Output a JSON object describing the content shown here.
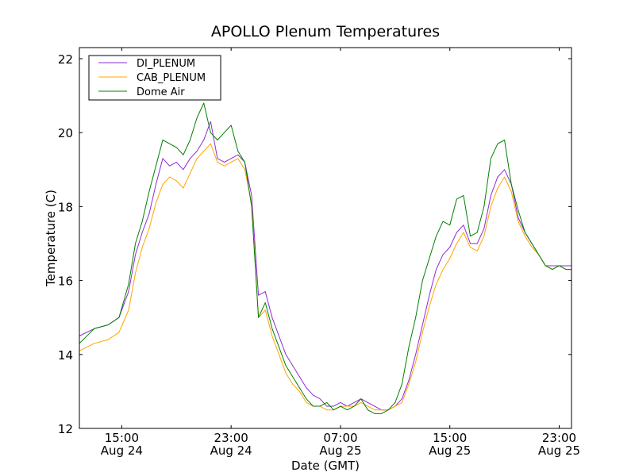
{
  "colors": {
    "di_plenum": "#8e2bd6",
    "cab_plenum": "#ffa500",
    "dome_air": "#008000"
  },
  "chart_data": {
    "type": "line",
    "title": "APOLLO Plenum Temperatures",
    "xlabel": "Date (GMT)",
    "ylabel": "Temperature (C)",
    "x_unit": "hours since Aug 24 00:00 GMT",
    "xlim": [
      11.9,
      47.9
    ],
    "ylim": [
      12,
      22.3
    ],
    "yticks": [
      12,
      14,
      16,
      18,
      20,
      22
    ],
    "ytick_labels": [
      "12",
      "14",
      "16",
      "18",
      "20",
      "22"
    ],
    "xticks": [
      {
        "x": 15,
        "time": "15:00",
        "date": "Aug 24"
      },
      {
        "x": 23,
        "time": "23:00",
        "date": "Aug 24"
      },
      {
        "x": 31,
        "time": "07:00",
        "date": "Aug 25"
      },
      {
        "x": 39,
        "time": "15:00",
        "date": "Aug 25"
      },
      {
        "x": 47,
        "time": "23:00",
        "date": "Aug 25"
      }
    ],
    "legend_position": "top-left",
    "series": [
      {
        "name": "DI_PLENUM",
        "color": "#8e2bd6",
        "x": [
          11.9,
          13.0,
          14.0,
          14.8,
          15.5,
          16.0,
          16.5,
          17.0,
          17.5,
          18.0,
          18.5,
          19.0,
          19.5,
          20.0,
          20.5,
          21.0,
          21.5,
          22.0,
          22.5,
          23.0,
          23.5,
          24.0,
          24.5,
          25.0,
          25.5,
          26.0,
          26.5,
          27.0,
          27.5,
          28.0,
          28.5,
          29.0,
          29.5,
          30.0,
          30.5,
          31.0,
          31.5,
          32.0,
          32.5,
          33.0,
          33.5,
          34.0,
          34.5,
          35.0,
          35.5,
          36.0,
          36.5,
          37.0,
          37.5,
          38.0,
          38.5,
          39.0,
          39.5,
          40.0,
          40.5,
          41.0,
          41.5,
          42.0,
          42.5,
          43.0,
          43.5,
          44.0,
          44.5,
          45.0,
          45.5,
          46.0,
          46.5,
          47.0,
          47.5,
          47.9
        ],
        "values": [
          14.5,
          14.7,
          14.8,
          15.0,
          15.7,
          16.7,
          17.3,
          17.8,
          18.6,
          19.3,
          19.1,
          19.2,
          19.0,
          19.3,
          19.5,
          19.8,
          20.3,
          19.3,
          19.2,
          19.3,
          19.4,
          19.2,
          18.3,
          15.6,
          15.7,
          15.0,
          14.5,
          14.0,
          13.7,
          13.4,
          13.1,
          12.9,
          12.8,
          12.6,
          12.6,
          12.7,
          12.6,
          12.7,
          12.8,
          12.7,
          12.6,
          12.5,
          12.5,
          12.6,
          12.8,
          13.3,
          14.0,
          14.8,
          15.6,
          16.3,
          16.7,
          16.9,
          17.3,
          17.5,
          17.0,
          17.0,
          17.4,
          18.3,
          18.8,
          19.0,
          18.6,
          17.7,
          17.3,
          17.0,
          16.7,
          16.4,
          16.4,
          16.4,
          16.4,
          16.4
        ]
      },
      {
        "name": "CAB_PLENUM",
        "color": "#ffa500",
        "x": [
          11.9,
          13.0,
          14.0,
          14.8,
          15.5,
          16.0,
          16.5,
          17.0,
          17.5,
          18.0,
          18.5,
          19.0,
          19.5,
          20.0,
          20.5,
          21.0,
          21.5,
          22.0,
          22.5,
          23.0,
          23.5,
          24.0,
          24.5,
          25.0,
          25.5,
          26.0,
          26.5,
          27.0,
          27.5,
          28.0,
          28.5,
          29.0,
          29.5,
          30.0,
          30.5,
          31.0,
          31.5,
          32.0,
          32.5,
          33.0,
          33.5,
          34.0,
          34.5,
          35.0,
          35.5,
          36.0,
          36.5,
          37.0,
          37.5,
          38.0,
          38.5,
          39.0,
          39.5,
          40.0,
          40.5,
          41.0,
          41.5,
          42.0,
          42.5,
          43.0,
          43.5,
          44.0,
          44.5,
          45.0,
          45.5,
          46.0,
          46.5,
          47.0,
          47.5,
          47.9
        ],
        "values": [
          14.1,
          14.3,
          14.4,
          14.6,
          15.2,
          16.2,
          16.9,
          17.4,
          18.1,
          18.6,
          18.8,
          18.7,
          18.5,
          18.9,
          19.3,
          19.5,
          19.7,
          19.2,
          19.1,
          19.2,
          19.3,
          19.0,
          18.1,
          15.0,
          15.2,
          14.5,
          14.0,
          13.5,
          13.2,
          13.0,
          12.7,
          12.6,
          12.6,
          12.5,
          12.5,
          12.6,
          12.6,
          12.6,
          12.7,
          12.6,
          12.5,
          12.5,
          12.5,
          12.6,
          12.7,
          13.2,
          13.8,
          14.6,
          15.3,
          15.9,
          16.3,
          16.6,
          17.0,
          17.3,
          16.9,
          16.8,
          17.2,
          18.0,
          18.5,
          18.8,
          18.4,
          17.6,
          17.2,
          16.9,
          16.7,
          16.4,
          16.3,
          16.4,
          16.3,
          16.3
        ]
      },
      {
        "name": "Dome Air",
        "color": "#008000",
        "x": [
          11.9,
          13.0,
          14.0,
          14.8,
          15.5,
          16.0,
          16.5,
          17.0,
          17.5,
          18.0,
          18.5,
          19.0,
          19.5,
          20.0,
          20.5,
          21.0,
          21.5,
          22.0,
          22.5,
          23.0,
          23.5,
          24.0,
          24.5,
          25.0,
          25.5,
          26.0,
          26.5,
          27.0,
          27.5,
          28.0,
          28.5,
          29.0,
          29.5,
          30.0,
          30.5,
          31.0,
          31.5,
          32.0,
          32.5,
          33.0,
          33.5,
          34.0,
          34.5,
          35.0,
          35.5,
          36.0,
          36.5,
          37.0,
          37.5,
          38.0,
          38.5,
          39.0,
          39.5,
          40.0,
          40.5,
          41.0,
          41.5,
          42.0,
          42.5,
          43.0,
          43.5,
          44.0,
          44.5,
          45.0,
          45.5,
          46.0,
          46.5,
          47.0,
          47.5,
          47.9
        ],
        "values": [
          14.3,
          14.7,
          14.8,
          15.0,
          15.9,
          17.0,
          17.6,
          18.4,
          19.1,
          19.8,
          19.7,
          19.6,
          19.4,
          19.8,
          20.4,
          20.8,
          20.0,
          19.8,
          20.0,
          20.2,
          19.5,
          19.2,
          18.0,
          15.0,
          15.4,
          14.7,
          14.2,
          13.7,
          13.4,
          13.1,
          12.8,
          12.6,
          12.6,
          12.7,
          12.5,
          12.6,
          12.5,
          12.6,
          12.8,
          12.5,
          12.4,
          12.4,
          12.5,
          12.7,
          13.2,
          14.2,
          15.0,
          16.0,
          16.6,
          17.2,
          17.6,
          17.5,
          18.2,
          18.3,
          17.2,
          17.3,
          18.0,
          19.3,
          19.7,
          19.8,
          18.6,
          17.9,
          17.3,
          17.0,
          16.7,
          16.4,
          16.3,
          16.4,
          16.3,
          16.3
        ]
      }
    ]
  }
}
